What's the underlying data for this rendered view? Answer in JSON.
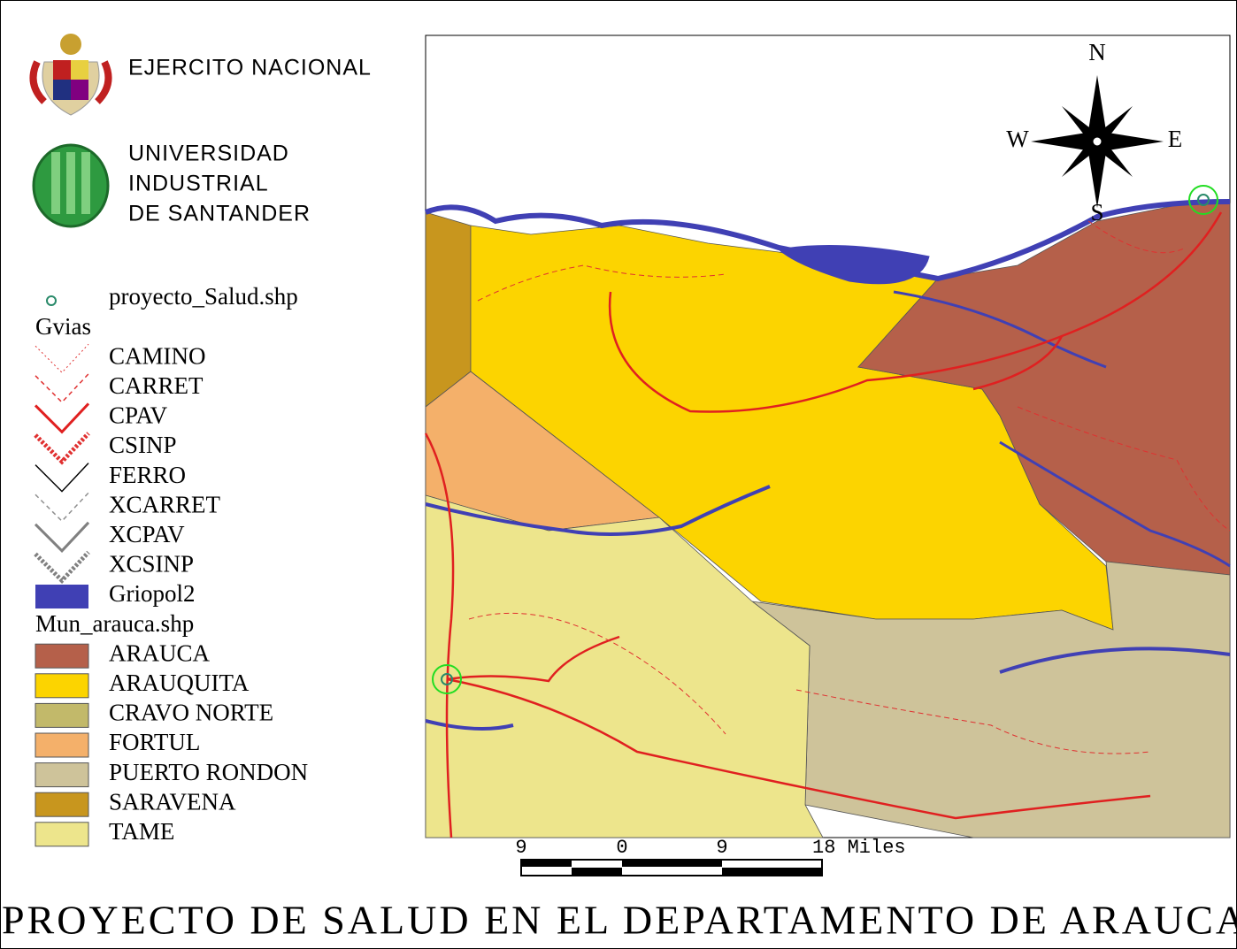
{
  "header": {
    "army": "EJERCITO NACIONAL",
    "university": [
      "UNIVERSIDAD",
      "INDUSTRIAL",
      "DE SANTANDER"
    ]
  },
  "legend": {
    "points_layer": "proyecto_Salud.shp",
    "roads_layer": "Gvias",
    "roads": [
      {
        "label": "CAMINO",
        "color": "#e03030",
        "style": "dotted"
      },
      {
        "label": "CARRET",
        "color": "#e03030",
        "style": "dashed"
      },
      {
        "label": "CPAV",
        "color": "#e02020",
        "style": "solid"
      },
      {
        "label": "CSINP",
        "color": "#e03030",
        "style": "double"
      },
      {
        "label": "FERRO",
        "color": "#000000",
        "style": "thin"
      },
      {
        "label": "XCARRET",
        "color": "#909090",
        "style": "dashed"
      },
      {
        "label": "XCPAV",
        "color": "#808080",
        "style": "solid"
      },
      {
        "label": "XCSINP",
        "color": "#808080",
        "style": "double"
      }
    ],
    "rivers_layer": "Griopol2",
    "rivers_color": "#4040b4",
    "municipalities_layer": "Mun_arauca.shp",
    "municipalities": [
      {
        "label": "ARAUCA",
        "color": "#b5604a"
      },
      {
        "label": "ARAUQUITA",
        "color": "#fcd400"
      },
      {
        "label": "CRAVO NORTE",
        "color": "#c2b96a"
      },
      {
        "label": "FORTUL",
        "color": "#f4b06a"
      },
      {
        "label": "PUERTO RONDON",
        "color": "#cec39a"
      },
      {
        "label": "SARAVENA",
        "color": "#c8961e"
      },
      {
        "label": "TAME",
        "color": "#ede58c"
      }
    ]
  },
  "compass": {
    "north": "N",
    "south": "S",
    "east": "E",
    "west": "W"
  },
  "scale_bar": [
    "9",
    "0",
    "9",
    "18 Miles"
  ],
  "title": "PROYECTO DE SALUD EN EL DEPARTAMENTO DE ARAUCA"
}
